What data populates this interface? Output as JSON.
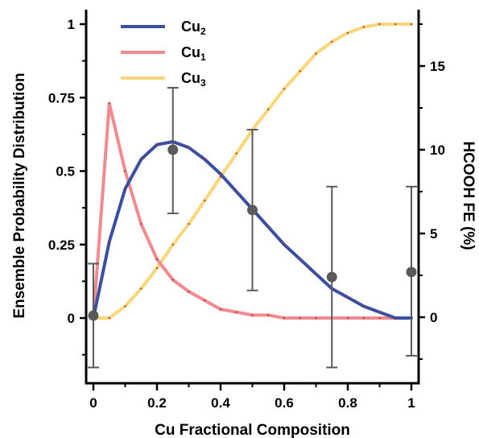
{
  "chart_data": {
    "type": "line",
    "xlabel": "Cu Fractional Composition",
    "ylabel_left": "Ensemble Probability Distribution",
    "ylabel_right": "HCOOH FE (%)",
    "xlim": [
      0,
      1
    ],
    "ylim_left": [
      -0.18,
      1.05
    ],
    "ylim_right": [
      -3,
      18.5
    ],
    "x_ticks": [
      "0",
      "0.2",
      "0.4",
      "0.6",
      "0.8",
      "1"
    ],
    "y_left_ticks": [
      "0",
      "0.25",
      "0.5",
      "0.75",
      "1"
    ],
    "y_right_ticks": [
      "0",
      "5",
      "10",
      "15"
    ],
    "grid": false,
    "legend_position": "top-left",
    "series": [
      {
        "name": "Cu₂",
        "label_main": "Cu",
        "label_sub": "2",
        "color": "#3a4ea2",
        "x": [
          0,
          0.05,
          0.1,
          0.15,
          0.2,
          0.25,
          0.3,
          0.35,
          0.4,
          0.45,
          0.5,
          0.55,
          0.6,
          0.65,
          0.7,
          0.75,
          0.8,
          0.85,
          0.9,
          0.95,
          1.0
        ],
        "y": [
          0,
          0.26,
          0.44,
          0.54,
          0.59,
          0.6,
          0.58,
          0.54,
          0.49,
          0.43,
          0.37,
          0.31,
          0.25,
          0.2,
          0.15,
          0.1,
          0.07,
          0.04,
          0.02,
          0.0,
          0.0
        ]
      },
      {
        "name": "Cu₁",
        "label_main": "Cu",
        "label_sub": "1",
        "color": "#f08a8f",
        "x": [
          0,
          0.05,
          0.1,
          0.15,
          0.2,
          0.25,
          0.3,
          0.35,
          0.4,
          0.45,
          0.5,
          0.55,
          0.6,
          0.65,
          0.7,
          0.75,
          0.8,
          0.85,
          0.9,
          0.95,
          1.0
        ],
        "y": [
          0,
          0.73,
          0.5,
          0.32,
          0.2,
          0.13,
          0.09,
          0.06,
          0.03,
          0.02,
          0.01,
          0.01,
          0.0,
          0.0,
          0.0,
          0.0,
          0.0,
          0.0,
          0.0,
          0.0,
          0.0
        ]
      },
      {
        "name": "Cu₃",
        "label_main": "Cu",
        "label_sub": "3",
        "color": "#fad67a",
        "x": [
          0,
          0.05,
          0.1,
          0.15,
          0.2,
          0.25,
          0.3,
          0.35,
          0.4,
          0.45,
          0.5,
          0.55,
          0.6,
          0.65,
          0.7,
          0.75,
          0.8,
          0.85,
          0.9,
          0.95,
          1.0
        ],
        "y": [
          0,
          0.0,
          0.04,
          0.1,
          0.17,
          0.25,
          0.32,
          0.4,
          0.48,
          0.56,
          0.64,
          0.71,
          0.78,
          0.84,
          0.9,
          0.94,
          0.97,
          0.99,
          1.0,
          1.0,
          1.0
        ]
      }
    ],
    "scatter_fe": {
      "axis": "right",
      "color": "#5a5a5a",
      "x": [
        0,
        0.25,
        0.5,
        0.75,
        1.0
      ],
      "y": [
        0.1,
        10.0,
        6.4,
        2.4,
        2.7
      ],
      "err_low": [
        -3.0,
        6.2,
        1.6,
        -3.0,
        -2.3
      ],
      "err_high": [
        3.2,
        13.7,
        11.2,
        7.8,
        7.8
      ]
    }
  }
}
